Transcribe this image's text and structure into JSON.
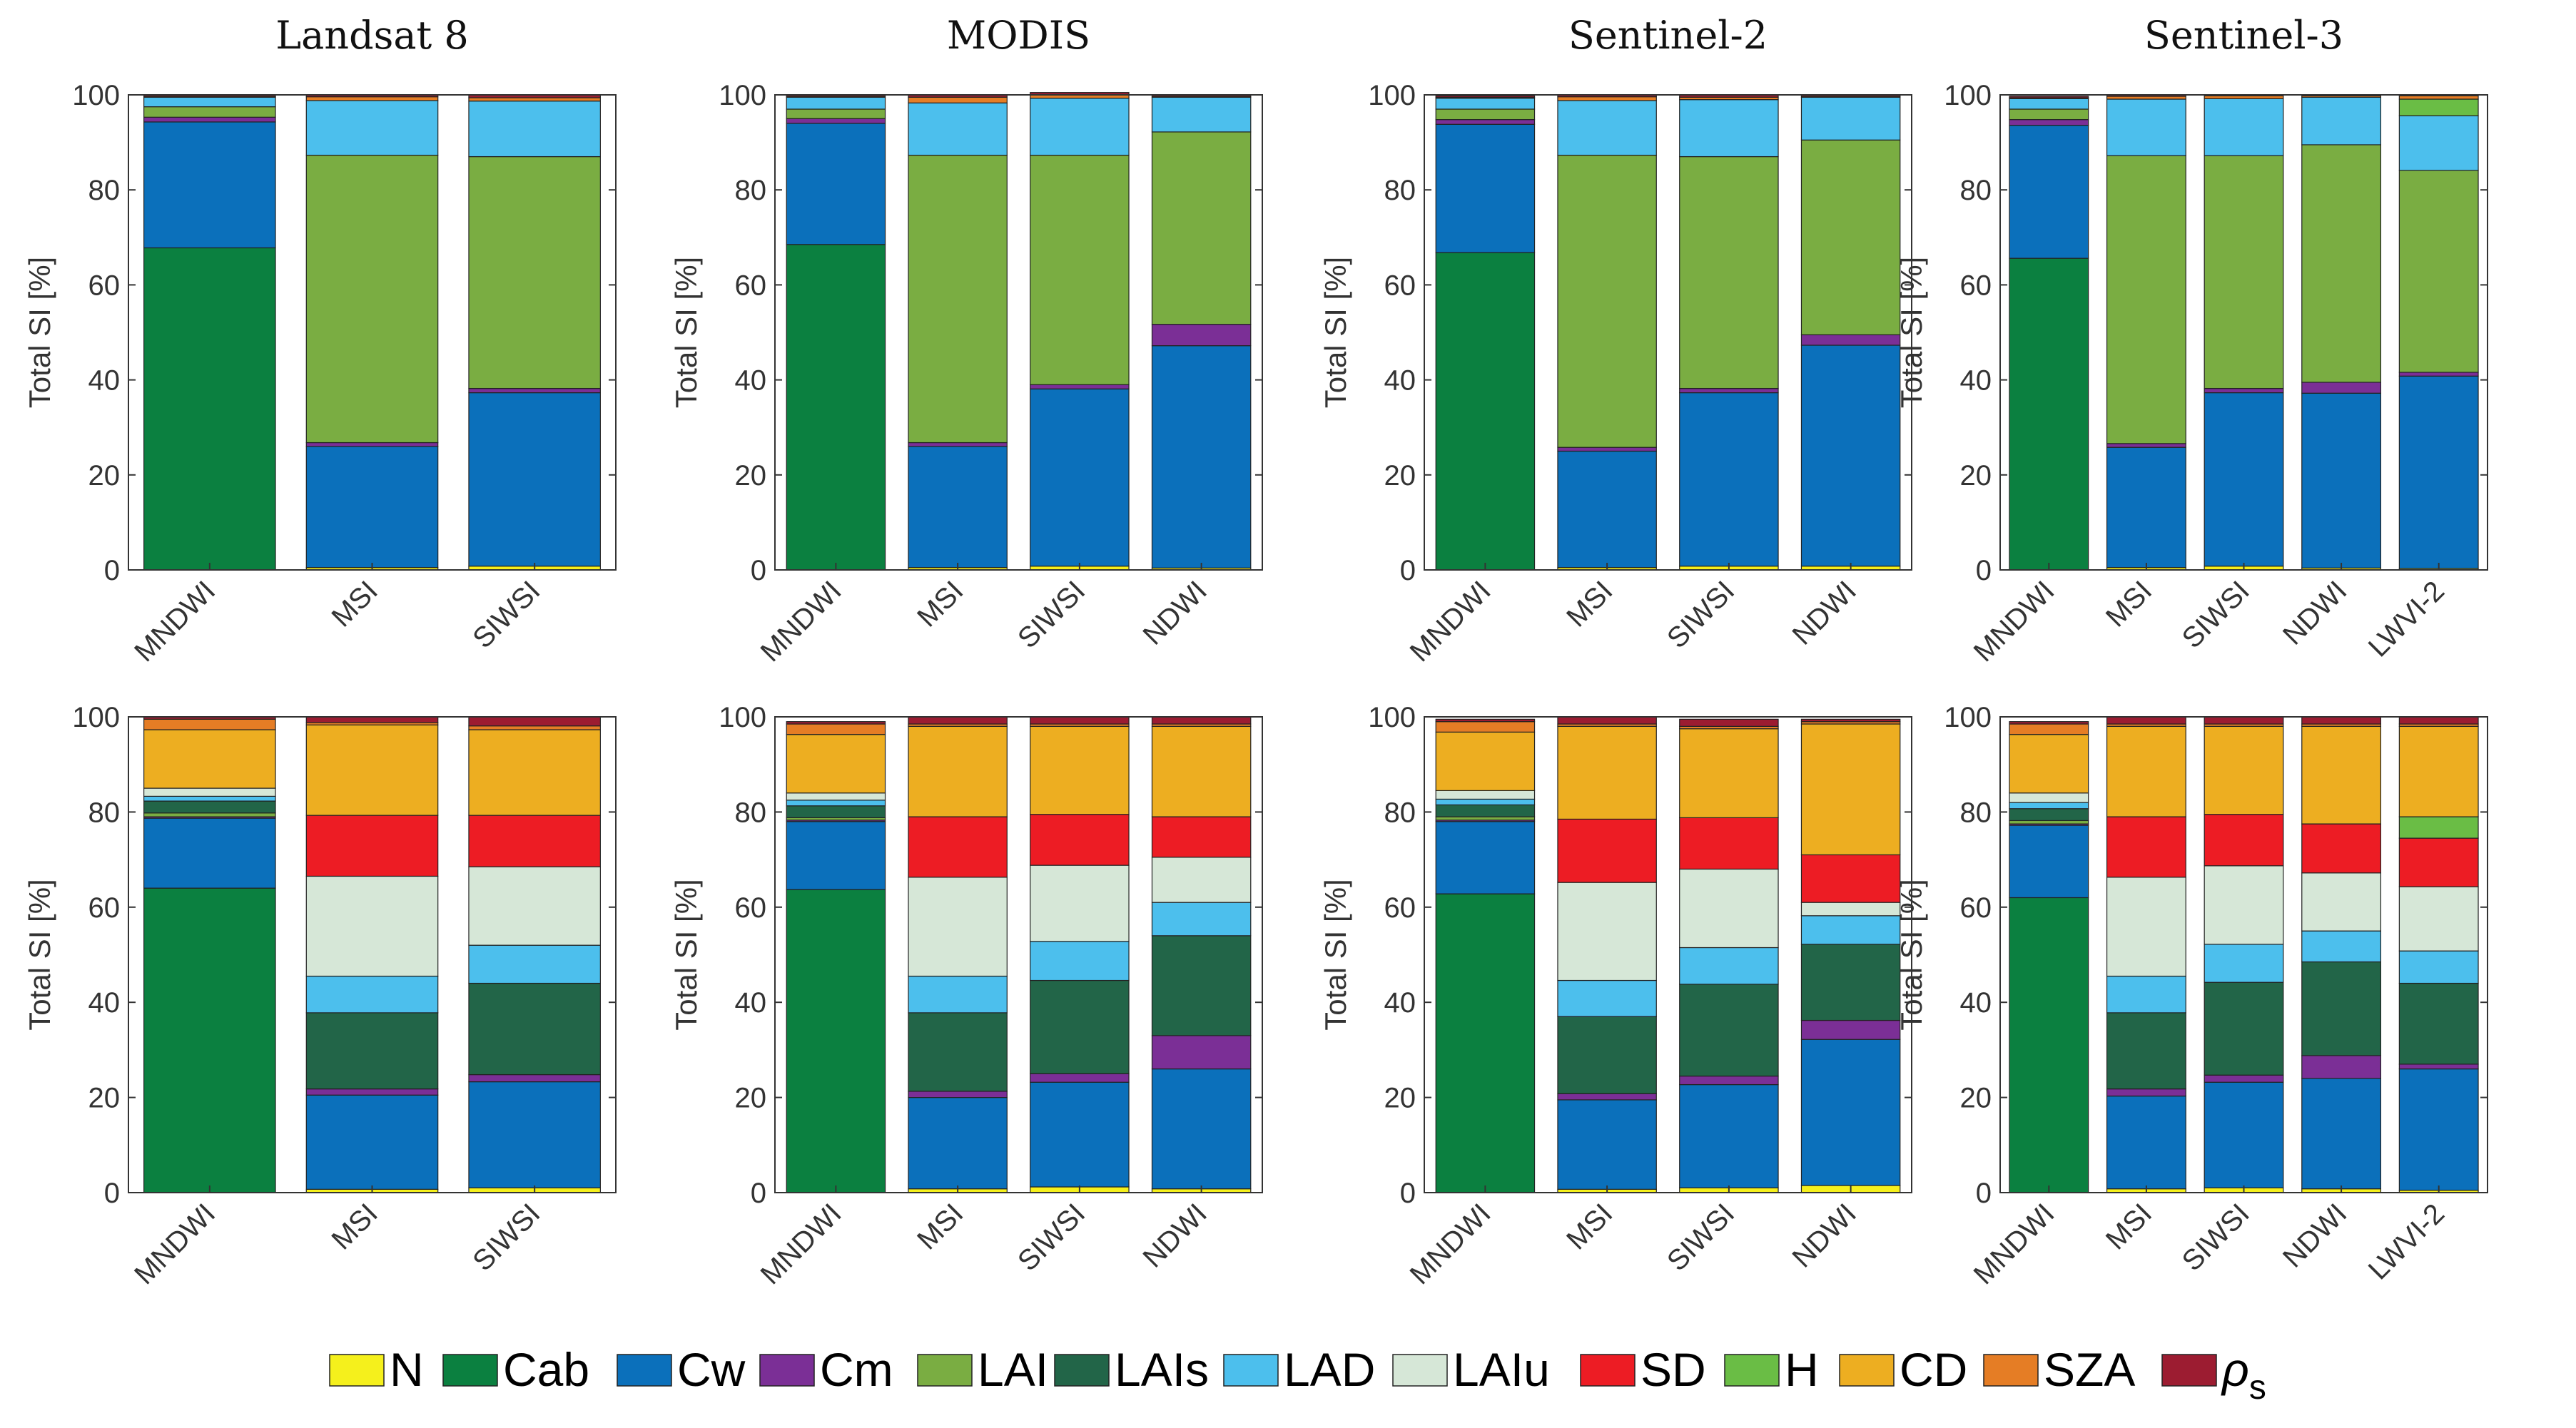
{
  "figure": {
    "ylabel": "Total SI [%]",
    "yticks": [
      0,
      20,
      40,
      60,
      80,
      100
    ],
    "ylim": [
      0,
      100
    ],
    "legend_position": "bottom",
    "components": [
      {
        "key": "N",
        "label": "N",
        "color": "#f5f01c"
      },
      {
        "key": "Cab",
        "label": "Cab",
        "color": "#0b8040"
      },
      {
        "key": "Cw",
        "label": "Cw",
        "color": "#0b70bb"
      },
      {
        "key": "Cm",
        "label": "Cm",
        "color": "#7b2f96"
      },
      {
        "key": "LAI",
        "label": "LAI",
        "color": "#7aad42"
      },
      {
        "key": "LAIs",
        "label": "LAIs",
        "color": "#226548"
      },
      {
        "key": "LAD",
        "label": "LAD",
        "color": "#4cbfed"
      },
      {
        "key": "LAIu",
        "label": "LAIu",
        "color": "#d6e7d7"
      },
      {
        "key": "SD",
        "label": "SD",
        "color": "#ed1c24"
      },
      {
        "key": "H",
        "label": "H",
        "color": "#6abd45"
      },
      {
        "key": "CD",
        "label": "CD",
        "color": "#edae21"
      },
      {
        "key": "SZA",
        "label": "SZA",
        "color": "#e57d25"
      },
      {
        "key": "rho_s",
        "label": "ρ",
        "sub": "s",
        "color": "#9c1c31"
      }
    ]
  },
  "chart_data": [
    {
      "type": "bar",
      "stacked": true,
      "title": "Landsat 8",
      "row": "top",
      "xlabel": "",
      "ylabel": "Total SI [%]",
      "ylim": [
        0,
        100
      ],
      "categories": [
        "MNDWI",
        "MSI",
        "SIWSI"
      ],
      "series": [
        {
          "name": "N",
          "values": [
            0.0,
            0.5,
            0.8
          ]
        },
        {
          "name": "Cab",
          "values": [
            67.8,
            0.0,
            0.0
          ]
        },
        {
          "name": "Cw",
          "values": [
            26.5,
            25.5,
            36.5
          ]
        },
        {
          "name": "Cm",
          "values": [
            1.0,
            0.8,
            0.9
          ]
        },
        {
          "name": "LAI",
          "values": [
            2.2,
            60.5,
            48.8
          ]
        },
        {
          "name": "LAIs",
          "values": [
            0.0,
            0.0,
            0.0
          ]
        },
        {
          "name": "LAD",
          "values": [
            2.0,
            11.5,
            11.7
          ]
        },
        {
          "name": "LAIu",
          "values": [
            0.0,
            0.0,
            0.0
          ]
        },
        {
          "name": "SD",
          "values": [
            0.0,
            0.0,
            0.0
          ]
        },
        {
          "name": "H",
          "values": [
            0.0,
            0.0,
            0.0
          ]
        },
        {
          "name": "CD",
          "values": [
            0.0,
            0.0,
            0.0
          ]
        },
        {
          "name": "SZA",
          "values": [
            0.2,
            0.8,
            0.7
          ]
        },
        {
          "name": "ρs",
          "values": [
            0.3,
            0.4,
            0.6
          ]
        }
      ]
    },
    {
      "type": "bar",
      "stacked": true,
      "title": "MODIS",
      "row": "top",
      "xlabel": "",
      "ylabel": "Total SI [%]",
      "ylim": [
        0,
        100
      ],
      "categories": [
        "MNDWI",
        "MSI",
        "SIWSI",
        "NDWI"
      ],
      "series": [
        {
          "name": "N",
          "values": [
            0.0,
            0.5,
            0.8,
            0.4
          ]
        },
        {
          "name": "Cab",
          "values": [
            68.5,
            0.0,
            0.0,
            0.0
          ]
        },
        {
          "name": "Cw",
          "values": [
            25.5,
            25.5,
            37.3,
            46.8
          ]
        },
        {
          "name": "Cm",
          "values": [
            1.0,
            0.8,
            0.9,
            4.5
          ]
        },
        {
          "name": "LAI",
          "values": [
            2.0,
            60.5,
            48.3,
            40.5
          ]
        },
        {
          "name": "LAIs",
          "values": [
            0.0,
            0.0,
            0.0,
            0.0
          ]
        },
        {
          "name": "LAD",
          "values": [
            2.5,
            11.0,
            12.0,
            7.3
          ]
        },
        {
          "name": "LAIu",
          "values": [
            0.0,
            0.0,
            0.0,
            0.0
          ]
        },
        {
          "name": "SD",
          "values": [
            0.0,
            0.0,
            0.0,
            0.0
          ]
        },
        {
          "name": "H",
          "values": [
            0.0,
            0.0,
            0.0,
            0.0
          ]
        },
        {
          "name": "CD",
          "values": [
            0.0,
            0.0,
            0.0,
            0.0
          ]
        },
        {
          "name": "SZA",
          "values": [
            0.2,
            1.2,
            0.7,
            0.2
          ]
        },
        {
          "name": "ρs",
          "values": [
            0.3,
            0.5,
            0.5,
            0.3
          ]
        }
      ]
    },
    {
      "type": "bar",
      "stacked": true,
      "title": "Sentinel-2",
      "row": "top",
      "xlabel": "",
      "ylabel": "Total SI [%]",
      "ylim": [
        0,
        100
      ],
      "categories": [
        "MNDWI",
        "MSI",
        "SIWSI",
        "NDWI"
      ],
      "series": [
        {
          "name": "N",
          "values": [
            0.0,
            0.5,
            0.8,
            0.8
          ]
        },
        {
          "name": "Cab",
          "values": [
            66.8,
            0.0,
            0.0,
            0.0
          ]
        },
        {
          "name": "Cw",
          "values": [
            27.0,
            24.5,
            36.5,
            46.5
          ]
        },
        {
          "name": "Cm",
          "values": [
            1.0,
            0.8,
            0.9,
            2.2
          ]
        },
        {
          "name": "LAI",
          "values": [
            2.2,
            61.5,
            48.8,
            41.0
          ]
        },
        {
          "name": "LAIs",
          "values": [
            0.0,
            0.0,
            0.0,
            0.0
          ]
        },
        {
          "name": "LAD",
          "values": [
            2.3,
            11.5,
            12.0,
            9.0
          ]
        },
        {
          "name": "LAIu",
          "values": [
            0.0,
            0.0,
            0.0,
            0.0
          ]
        },
        {
          "name": "SD",
          "values": [
            0.0,
            0.0,
            0.0,
            0.0
          ]
        },
        {
          "name": "H",
          "values": [
            0.0,
            0.0,
            0.0,
            0.0
          ]
        },
        {
          "name": "CD",
          "values": [
            0.0,
            0.0,
            0.0,
            0.0
          ]
        },
        {
          "name": "SZA",
          "values": [
            0.2,
            0.8,
            0.5,
            0.2
          ]
        },
        {
          "name": "ρs",
          "values": [
            0.3,
            0.4,
            0.5,
            0.3
          ]
        }
      ]
    },
    {
      "type": "bar",
      "stacked": true,
      "title": "Sentinel-3",
      "row": "top",
      "xlabel": "",
      "ylabel": "Total SI [%]",
      "ylim": [
        0,
        100
      ],
      "categories": [
        "MNDWI",
        "MSI",
        "SIWSI",
        "NDWI",
        "LWVI-2"
      ],
      "series": [
        {
          "name": "N",
          "values": [
            0.0,
            0.5,
            0.8,
            0.4,
            0.3
          ]
        },
        {
          "name": "Cab",
          "values": [
            65.6,
            0.0,
            0.0,
            0.0,
            0.0
          ]
        },
        {
          "name": "Cw",
          "values": [
            28.0,
            25.3,
            36.5,
            36.8,
            40.5
          ]
        },
        {
          "name": "Cm",
          "values": [
            1.2,
            0.8,
            0.9,
            2.3,
            0.8
          ]
        },
        {
          "name": "LAI",
          "values": [
            2.2,
            60.6,
            49.0,
            50.0,
            42.5
          ]
        },
        {
          "name": "LAIs",
          "values": [
            0.0,
            0.0,
            0.0,
            0.0,
            0.0
          ]
        },
        {
          "name": "LAD",
          "values": [
            2.2,
            11.9,
            12.0,
            10.0,
            11.5
          ]
        },
        {
          "name": "LAIu",
          "values": [
            0.0,
            0.0,
            0.0,
            0.0,
            0.0
          ]
        },
        {
          "name": "SD",
          "values": [
            0.0,
            0.0,
            0.0,
            0.0,
            0.0
          ]
        },
        {
          "name": "H",
          "values": [
            0.0,
            0.0,
            0.0,
            0.0,
            3.5
          ]
        },
        {
          "name": "CD",
          "values": [
            0.0,
            0.0,
            0.0,
            0.0,
            0.0
          ]
        },
        {
          "name": "SZA",
          "values": [
            0.2,
            0.6,
            0.6,
            0.3,
            0.7
          ]
        },
        {
          "name": "ρs",
          "values": [
            0.3,
            0.3,
            0.2,
            0.2,
            0.2
          ]
        }
      ]
    },
    {
      "type": "bar",
      "stacked": true,
      "title": "",
      "panel": "Landsat 8",
      "row": "bottom",
      "xlabel": "",
      "ylabel": "Total SI [%]",
      "ylim": [
        0,
        100
      ],
      "categories": [
        "MNDWI",
        "MSI",
        "SIWSI"
      ],
      "series": [
        {
          "name": "N",
          "values": [
            0.0,
            0.7,
            1.0
          ]
        },
        {
          "name": "Cab",
          "values": [
            64.0,
            0.0,
            0.0
          ]
        },
        {
          "name": "Cw",
          "values": [
            14.7,
            19.8,
            22.3
          ]
        },
        {
          "name": "Cm",
          "values": [
            0.3,
            1.3,
            1.5
          ]
        },
        {
          "name": "LAI",
          "values": [
            0.8,
            0.0,
            0.0
          ]
        },
        {
          "name": "LAIs",
          "values": [
            2.5,
            16.0,
            19.2
          ]
        },
        {
          "name": "LAD",
          "values": [
            1.0,
            7.7,
            8.0
          ]
        },
        {
          "name": "LAIu",
          "values": [
            1.7,
            21.0,
            16.5
          ]
        },
        {
          "name": "SD",
          "values": [
            0.0,
            12.8,
            10.8
          ]
        },
        {
          "name": "H",
          "values": [
            0.0,
            0.0,
            0.0
          ]
        },
        {
          "name": "CD",
          "values": [
            12.3,
            19.0,
            18.0
          ]
        },
        {
          "name": "SZA",
          "values": [
            2.2,
            0.5,
            0.8
          ]
        },
        {
          "name": "ρs",
          "values": [
            0.5,
            1.2,
            1.9
          ]
        }
      ]
    },
    {
      "type": "bar",
      "stacked": true,
      "title": "",
      "panel": "MODIS",
      "row": "bottom",
      "xlabel": "",
      "ylabel": "Total SI [%]",
      "ylim": [
        0,
        100
      ],
      "categories": [
        "MNDWI",
        "MSI",
        "SIWSI",
        "NDWI"
      ],
      "series": [
        {
          "name": "N",
          "values": [
            0.0,
            0.8,
            1.2,
            0.8
          ]
        },
        {
          "name": "Cab",
          "values": [
            63.7,
            0.0,
            0.0,
            0.0
          ]
        },
        {
          "name": "Cw",
          "values": [
            14.3,
            19.2,
            22.0,
            25.2
          ]
        },
        {
          "name": "Cm",
          "values": [
            0.3,
            1.3,
            1.8,
            7.0
          ]
        },
        {
          "name": "LAI",
          "values": [
            0.5,
            0.0,
            0.0,
            0.0
          ]
        },
        {
          "name": "LAIs",
          "values": [
            2.5,
            16.5,
            19.6,
            21.0
          ]
        },
        {
          "name": "LAD",
          "values": [
            1.2,
            7.7,
            8.2,
            7.0
          ]
        },
        {
          "name": "LAIu",
          "values": [
            1.5,
            20.8,
            16.0,
            9.5
          ]
        },
        {
          "name": "SD",
          "values": [
            0.0,
            12.7,
            10.7,
            8.5
          ]
        },
        {
          "name": "H",
          "values": [
            0.0,
            0.0,
            0.0,
            0.0
          ]
        },
        {
          "name": "CD",
          "values": [
            12.3,
            19.0,
            18.5,
            19.0
          ]
        },
        {
          "name": "SZA",
          "values": [
            2.2,
            0.5,
            0.5,
            0.5
          ]
        },
        {
          "name": "ρs",
          "values": [
            0.5,
            1.5,
            1.5,
            1.5
          ]
        }
      ]
    },
    {
      "type": "bar",
      "stacked": true,
      "title": "",
      "panel": "Sentinel-2",
      "row": "bottom",
      "xlabel": "",
      "ylabel": "Total SI [%]",
      "ylim": [
        0,
        100
      ],
      "categories": [
        "MNDWI",
        "MSI",
        "SIWSI",
        "NDWI"
      ],
      "series": [
        {
          "name": "N",
          "values": [
            0.0,
            0.7,
            1.0,
            1.5
          ]
        },
        {
          "name": "Cab",
          "values": [
            62.8,
            0.0,
            0.0,
            0.0
          ]
        },
        {
          "name": "Cw",
          "values": [
            15.2,
            18.8,
            21.7,
            30.7
          ]
        },
        {
          "name": "Cm",
          "values": [
            0.3,
            1.3,
            1.8,
            4.0
          ]
        },
        {
          "name": "LAI",
          "values": [
            0.7,
            0.0,
            0.0,
            0.0
          ]
        },
        {
          "name": "LAIs",
          "values": [
            2.5,
            16.2,
            19.3,
            16.0
          ]
        },
        {
          "name": "LAD",
          "values": [
            1.2,
            7.6,
            7.7,
            6.0
          ]
        },
        {
          "name": "LAIu",
          "values": [
            1.8,
            20.6,
            16.5,
            2.8
          ]
        },
        {
          "name": "SD",
          "values": [
            0.0,
            13.3,
            10.8,
            10.0
          ]
        },
        {
          "name": "H",
          "values": [
            0.0,
            0.0,
            0.0,
            0.0
          ]
        },
        {
          "name": "CD",
          "values": [
            12.3,
            19.5,
            18.7,
            27.5
          ]
        },
        {
          "name": "SZA",
          "values": [
            2.2,
            0.5,
            0.5,
            0.5
          ]
        },
        {
          "name": "ρs",
          "values": [
            0.5,
            1.5,
            1.5,
            0.5
          ]
        }
      ]
    },
    {
      "type": "bar",
      "stacked": true,
      "title": "",
      "panel": "Sentinel-3",
      "row": "bottom",
      "xlabel": "",
      "ylabel": "Total SI [%]",
      "ylim": [
        0,
        100
      ],
      "categories": [
        "MNDWI",
        "MSI",
        "SIWSI",
        "NDWI",
        "LWVI-2"
      ],
      "series": [
        {
          "name": "N",
          "values": [
            0.0,
            0.8,
            1.0,
            0.8,
            0.5
          ]
        },
        {
          "name": "Cab",
          "values": [
            62.0,
            0.0,
            0.0,
            0.0,
            0.0
          ]
        },
        {
          "name": "Cw",
          "values": [
            15.2,
            19.5,
            22.2,
            23.2,
            25.5
          ]
        },
        {
          "name": "Cm",
          "values": [
            0.3,
            1.5,
            1.5,
            4.8,
            1.0
          ]
        },
        {
          "name": "LAI",
          "values": [
            0.7,
            0.0,
            0.0,
            0.0,
            0.0
          ]
        },
        {
          "name": "LAIs",
          "values": [
            2.5,
            16.0,
            19.5,
            19.7,
            17.0
          ]
        },
        {
          "name": "LAD",
          "values": [
            1.3,
            7.7,
            8.0,
            6.5,
            6.8
          ]
        },
        {
          "name": "LAIu",
          "values": [
            2.0,
            20.8,
            16.5,
            12.2,
            13.5
          ]
        },
        {
          "name": "SD",
          "values": [
            0.0,
            12.7,
            10.8,
            10.3,
            10.2
          ]
        },
        {
          "name": "H",
          "values": [
            0.0,
            0.0,
            0.0,
            0.0,
            4.5
          ]
        },
        {
          "name": "CD",
          "values": [
            12.3,
            19.0,
            18.5,
            20.5,
            19.0
          ]
        },
        {
          "name": "SZA",
          "values": [
            2.2,
            0.5,
            0.5,
            0.5,
            0.5
          ]
        },
        {
          "name": "ρs",
          "values": [
            0.5,
            1.5,
            1.5,
            1.5,
            1.5
          ]
        }
      ]
    }
  ]
}
